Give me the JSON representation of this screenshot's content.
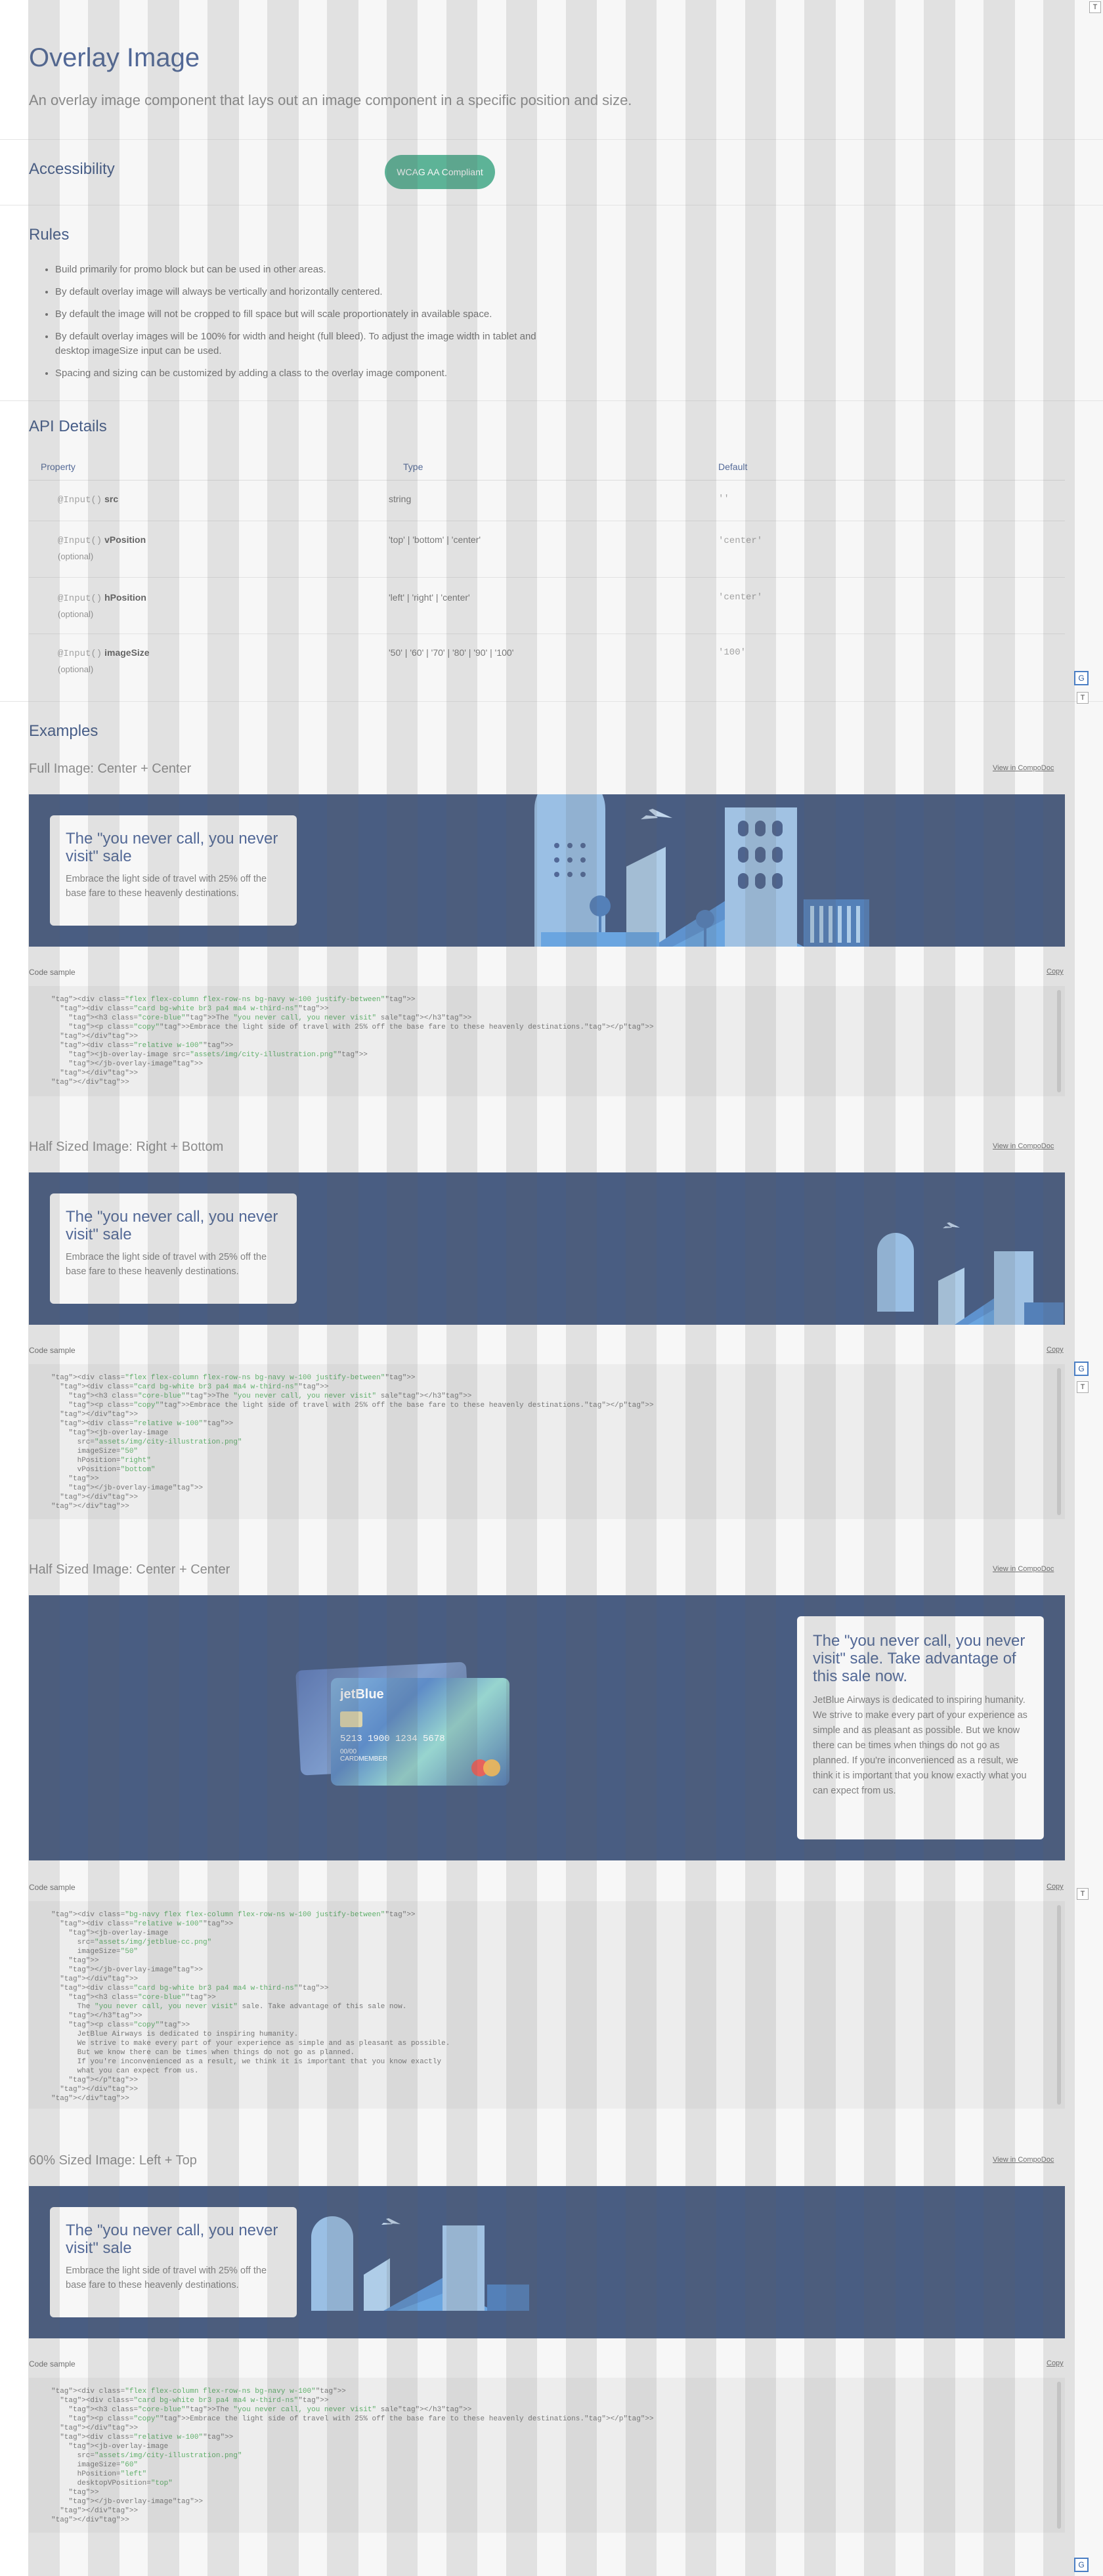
{
  "header": {
    "title": "Overlay Image",
    "subtitle": "An overlay image component that lays out an image component in a specific position and size."
  },
  "accessibility": {
    "heading": "Accessibility",
    "badge": "WCAG AA Compliant"
  },
  "rules": {
    "heading": "Rules",
    "items": [
      "Build primarily for promo block but can be used in other areas.",
      "By default overlay image will always be vertically and horizontally centered.",
      "By default the image will not be cropped to fill space but will scale proportionately in available space.",
      "By default overlay images will be 100% for width and height (full bleed). To adjust the image width in tablet and desktop imageSize input can be used.",
      "Spacing and sizing can be customized by adding a class to the overlay image component."
    ]
  },
  "api": {
    "heading": "API Details",
    "columns": [
      "Property",
      "Type",
      "Default"
    ],
    "rows": [
      {
        "decorator": "@Input()",
        "name": "src",
        "optional": "",
        "type": "string",
        "default": "''"
      },
      {
        "decorator": "@Input()",
        "name": "vPosition",
        "optional": "(optional)",
        "type": "'top' | 'bottom' | 'center'",
        "default": "'center'"
      },
      {
        "decorator": "@Input()",
        "name": "hPosition",
        "optional": "(optional)",
        "type": "'left' | 'right' | 'center'",
        "default": "'center'"
      },
      {
        "decorator": "@Input()",
        "name": "imageSize",
        "optional": "(optional)",
        "type": "'50' | '60' | '70' | '80' | '90' | '100'",
        "default": "'100'"
      }
    ]
  },
  "examples": {
    "heading": "Examples",
    "view_link": "View in CompoDoc",
    "copy_link": "Copy",
    "code_label": "Code sample",
    "items": [
      {
        "title": "Full Image: Center + Center",
        "card_title": "The \"you never call, you never visit\" sale",
        "card_copy": "Embrace the light side of travel with 25% off the base fare to these heavenly destinations."
      },
      {
        "title": "Half Sized Image: Right + Bottom",
        "card_title": "The \"you never call, you never visit\" sale",
        "card_copy": "Embrace the light side of travel with 25% off the base fare to these heavenly destinations."
      },
      {
        "title": "Half Sized Image: Center + Center",
        "card_title": "The \"you never call, you never visit\" sale. Take advantage of this sale now.",
        "card_copy": "JetBlue Airways is dedicated to inspiring humanity. We strive to make every part of your experience as simple and as pleasant as possible. But we know there can be times when things do not go as planned. If you're inconvenienced as a result, we think it is important that you know exactly what you can expect from us."
      },
      {
        "title": "60% Sized Image: Left + Top",
        "card_title": "The \"you never call, you never visit\" sale",
        "card_copy": "Embrace the light side of travel with 25% off the base fare to these heavenly destinations."
      }
    ],
    "code": [
      "<div class=\"flex flex-column flex-row-ns bg-navy w-100 justify-between\">\n  <div class=\"card bg-white br3 pa4 ma4 w-third-ns\">\n    <h3 class=\"core-blue\">The \"you never call, you never visit\" sale</h3>\n    <p class=\"copy\">Embrace the light side of travel with 25% off the base fare to these heavenly destinations.</p>\n  </div>\n  <div class=\"relative w-100\">\n    <jb-overlay-image src=\"assets/img/city-illustration.png\">\n    </jb-overlay-image>\n  </div>\n</div>",
      "<div class=\"flex flex-column flex-row-ns bg-navy w-100 justify-between\">\n  <div class=\"card bg-white br3 pa4 ma4 w-third-ns\">\n    <h3 class=\"core-blue\">The \"you never call, you never visit\" sale</h3>\n    <p class=\"copy\">Embrace the light side of travel with 25% off the base fare to these heavenly destinations.</p>\n  </div>\n  <div class=\"relative w-100\">\n    <jb-overlay-image\n      src=\"assets/img/city-illustration.png\"\n      imageSize=\"50\"\n      hPosition=\"right\"\n      vPosition=\"bottom\"\n    >\n    </jb-overlay-image>\n  </div>\n</div>",
      "<div class=\"bg-navy flex flex-column flex-row-ns w-100 justify-between\">\n  <div class=\"relative w-100\">\n    <jb-overlay-image\n      src=\"assets/img/jetblue-cc.png\"\n      imageSize=\"50\"\n    >\n    </jb-overlay-image>\n  </div>\n  <div class=\"card bg-white br3 pa4 ma4 w-third-ns\">\n    <h3 class=\"core-blue\">\n      The \"you never call, you never visit\" sale. Take advantage of this sale now.\n    </h3>\n    <p class=\"copy\">\n      JetBlue Airways is dedicated to inspiring humanity.\n      We strive to make every part of your experience as simple and as pleasant as possible.\n      But we know there can be times when things do not go as planned.\n      If you're inconvenienced as a result, we think it is important that you know exactly\n      what you can expect from us.\n    </p>\n  </div>\n</div>",
      "<div class=\"flex flex-column flex-row-ns bg-navy w-100\">\n  <div class=\"card bg-white br3 pa4 ma4 w-third-ns\">\n    <h3 class=\"core-blue\">The \"you never call, you never visit\" sale</h3>\n    <p class=\"copy\">Embrace the light side of travel with 25% off the base fare to these heavenly destinations.</p>\n  </div>\n  <div class=\"relative w-100\">\n    <jb-overlay-image\n      src=\"assets/img/city-illustration.png\"\n      imageSize=\"60\"\n      hPosition=\"left\"\n      desktopVPosition=\"top\"\n    >\n    </jb-overlay-image>\n  </div>\n</div>"
    ],
    "card_brand": "jetBlue",
    "card_number": "5213 1900 1234 5678",
    "card_holder": "CARDMEMBER",
    "card_expiry": "00/00"
  },
  "devtools": {
    "g_label": "G",
    "t_label": "T"
  },
  "colors": {
    "navy": "#0f2a5e",
    "core_blue": "#1b3a7a",
    "badge_green": "#2aa17a",
    "code_tag": "#e0534d",
    "code_string": "#2e9c3e"
  }
}
